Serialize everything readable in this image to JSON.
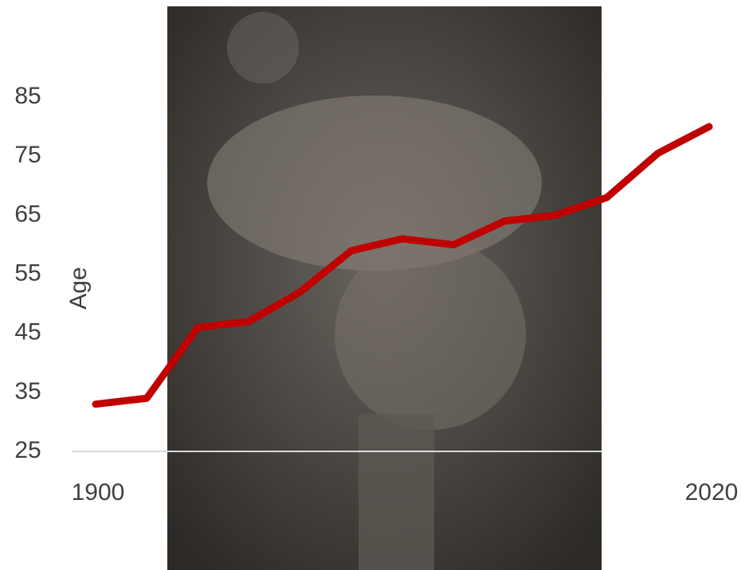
{
  "chart_data": {
    "type": "line",
    "y_label": "Age",
    "x": [
      1900,
      1910,
      1920,
      1930,
      1940,
      1950,
      1960,
      1970,
      1980,
      1990,
      2000,
      2010,
      2020
    ],
    "series": [
      {
        "color": "#c00000",
        "values": [
          33,
          34,
          46,
          47,
          52,
          59,
          61,
          60,
          64,
          65,
          68,
          75.5,
          80
        ]
      }
    ],
    "xlim": [
      1900,
      2020
    ],
    "xticks": [
      1900,
      2020
    ],
    "ylim": [
      25,
      85
    ],
    "yticks": [
      25,
      35,
      45,
      55,
      65,
      75,
      85
    ]
  }
}
